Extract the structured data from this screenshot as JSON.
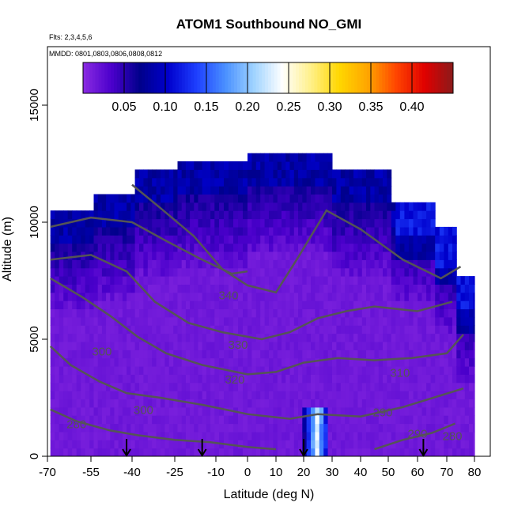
{
  "chart_data": {
    "type": "heatmap",
    "title": "ATOM1 Southbound NO_GMI",
    "subtitle": "Flts: 2,3,4,5,6",
    "annotation": "MMDD: 0801,0803,0806,0808,0812",
    "xlabel": "Latitude (deg N)",
    "ylabel": "Altitude (m)",
    "xlim": [
      -70,
      80
    ],
    "ylim": [
      0,
      17500
    ],
    "xticks": [
      -70,
      -55,
      -40,
      -25,
      -10,
      0,
      10,
      20,
      30,
      40,
      50,
      60,
      70,
      80
    ],
    "yticks": [
      0,
      5000,
      10000,
      15000
    ],
    "colorbar": {
      "range": [
        0,
        0.45
      ],
      "ticks": [
        0.05,
        0.1,
        0.15,
        0.2,
        0.25,
        0.3,
        0.35,
        0.4
      ],
      "tick_labels": [
        "0.05",
        "0.10",
        "0.15",
        "0.20",
        "0.25",
        "0.30",
        "0.35",
        "0.40"
      ],
      "colors": [
        "#8a2be2",
        "#4b00cc",
        "#00008b",
        "#0000cd",
        "#1e40ff",
        "#4a90ff",
        "#9fd3ff",
        "#ffffff",
        "#fff08a",
        "#ffd700",
        "#ffa500",
        "#ff4500",
        "#e00000",
        "#8b1a1a"
      ]
    },
    "regions": [
      {
        "desc": "background NO",
        "value": 0.01
      },
      {
        "desc": "upper troposphere enhancement",
        "value": 0.07
      },
      {
        "desc": "low-level plume near 20-28N",
        "value": 0.2
      }
    ],
    "contour_labels": [
      "340",
      "330",
      "320",
      "310",
      "300",
      "290",
      "280",
      "290",
      "280",
      "300"
    ],
    "flight_markers_lat": [
      -42,
      -15,
      20,
      62
    ]
  }
}
